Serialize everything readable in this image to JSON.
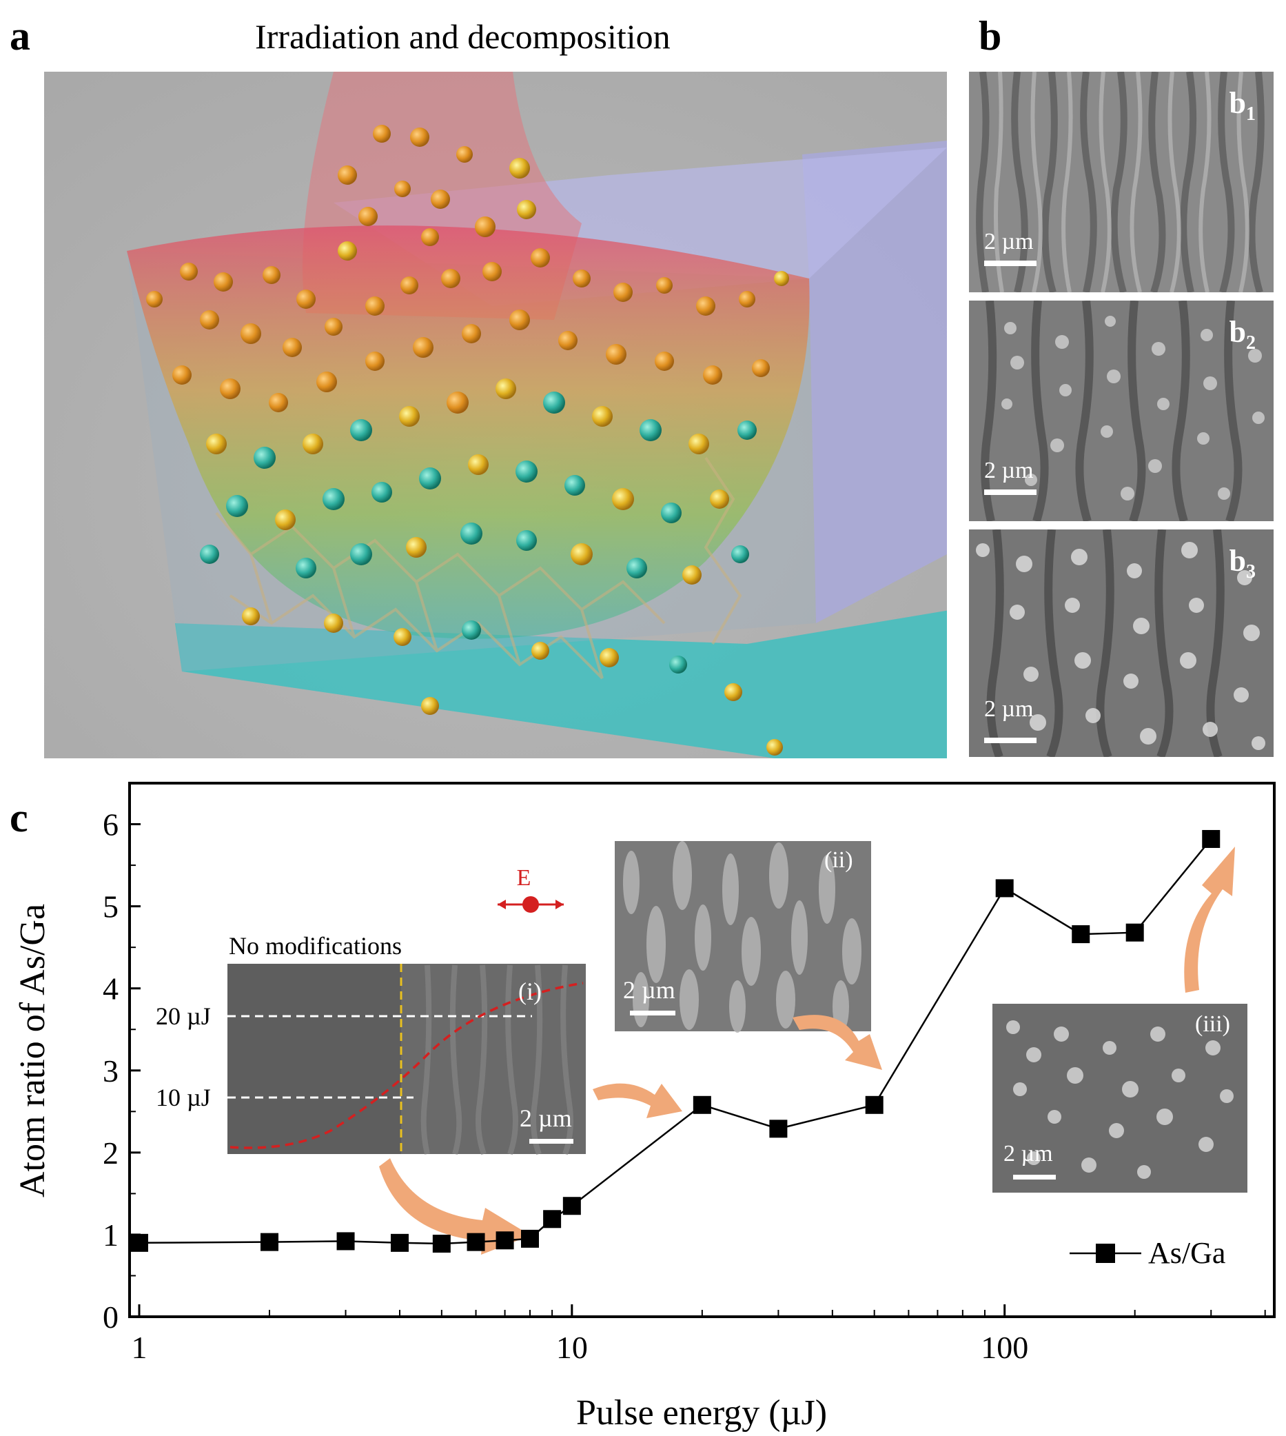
{
  "panels": {
    "a": {
      "letter": "a",
      "title": "Irradiation and decomposition"
    },
    "b": {
      "letter": "b",
      "images": [
        {
          "tag_main": "b",
          "tag_sub": "1",
          "scale": "2 µm"
        },
        {
          "tag_main": "b",
          "tag_sub": "2",
          "scale": "2 µm"
        },
        {
          "tag_main": "b",
          "tag_sub": "3",
          "scale": "2 µm"
        }
      ]
    },
    "c": {
      "letter": "c"
    }
  },
  "insets": {
    "i": {
      "label": "(i)",
      "header": "No modifications",
      "line_20": "20 µJ",
      "line_10": "10 µJ",
      "scale": "2 µm",
      "efield": "E"
    },
    "ii": {
      "label": "(ii)",
      "scale": "2 µm"
    },
    "iii": {
      "label": "(iii)",
      "scale": "2 µm"
    }
  },
  "colors": {
    "series": "#000000",
    "arrow": "#f0a878",
    "efield": "#d42020",
    "gauss": "#d42020",
    "threshold": "#e8c020"
  },
  "chart_data": {
    "type": "line",
    "x_scale": "log",
    "xlabel": "Pulse energy (µJ)",
    "ylabel": "Atom ratio of As/Ga",
    "xlim": [
      0.95,
      420
    ],
    "ylim": [
      0,
      6.5
    ],
    "x_ticks": [
      1,
      10,
      100
    ],
    "x_tick_labels": [
      "1",
      "10",
      "100"
    ],
    "y_ticks": [
      0,
      1,
      2,
      3,
      4,
      5,
      6
    ],
    "y_tick_labels": [
      "0",
      "1",
      "2",
      "3",
      "4",
      "5",
      "6"
    ],
    "legend_position": "bottom-right",
    "series": [
      {
        "name": "As/Ga",
        "marker": "square",
        "x": [
          1,
          2,
          3,
          4,
          5,
          6,
          7,
          8,
          9,
          10,
          20,
          30,
          50,
          100,
          150,
          200,
          300
        ],
        "y": [
          0.9,
          0.91,
          0.92,
          0.9,
          0.89,
          0.91,
          0.93,
          0.95,
          1.19,
          1.35,
          2.58,
          2.29,
          2.58,
          5.22,
          4.66,
          4.68,
          5.82
        ]
      }
    ]
  }
}
